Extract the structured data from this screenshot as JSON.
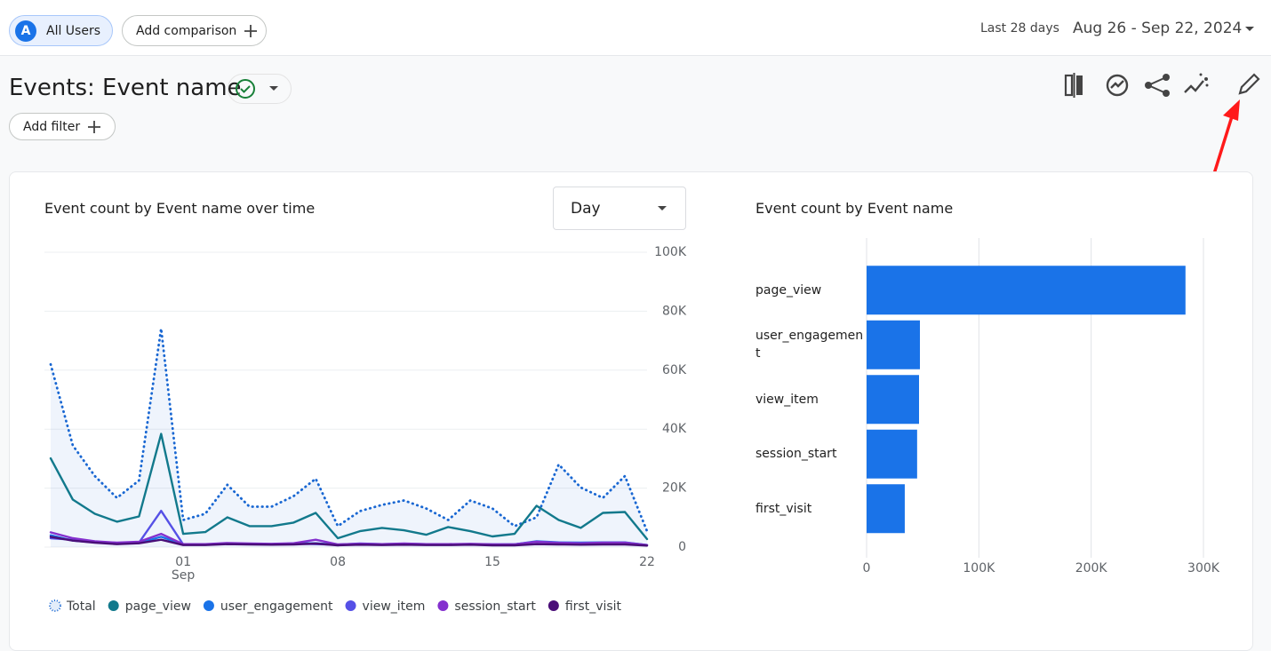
{
  "header": {
    "segment_badge": "A",
    "segment": "All Users",
    "add_comparison": "Add comparison",
    "date_range_label": "Last 28 days",
    "date_range": "Aug 26 - Sep 22, 2024",
    "title": "Events: Event name",
    "add_filter": "Add filter"
  },
  "chart_data": [
    {
      "type": "line",
      "title": "Event count by Event name over time",
      "interval": "Day",
      "categories": [
        null,
        null,
        null,
        null,
        null,
        null,
        "01",
        null,
        null,
        null,
        null,
        null,
        null,
        "08",
        null,
        null,
        null,
        null,
        null,
        null,
        "15",
        null,
        null,
        null,
        null,
        null,
        null,
        "22"
      ],
      "month_label": "Sep",
      "ylim": [
        0,
        100000
      ],
      "yticks": [
        0,
        {
          "value": 20000,
          "label": "20K"
        },
        {
          "value": 40000,
          "label": "40K"
        },
        {
          "value": 60000,
          "label": "60K"
        },
        {
          "value": 80000,
          "label": "80K"
        },
        {
          "value": 100000,
          "label": "100K"
        }
      ],
      "grid": true,
      "series": [
        {
          "name": "Total",
          "color": "#1967d2",
          "line_style": "dotted",
          "area": true,
          "values": [
            62000,
            34500,
            24100,
            16700,
            22600,
            74100,
            9200,
            11300,
            21100,
            13700,
            13700,
            17300,
            23200,
            7100,
            12200,
            14300,
            15800,
            13100,
            9200,
            15800,
            13100,
            7100,
            10100,
            28000,
            20200,
            16700,
            24100,
            5400
          ]
        },
        {
          "name": "page_view",
          "color": "#12798c",
          "values": [
            30100,
            16100,
            11300,
            8600,
            10400,
            38400,
            4500,
            5100,
            10100,
            7100,
            7100,
            8300,
            11600,
            3000,
            5400,
            6500,
            5700,
            4200,
            6800,
            5400,
            3600,
            4500,
            14000,
            9200,
            6500,
            11600,
            11900,
            2700
          ]
        },
        {
          "name": "user_engagement",
          "color": "#1a73e8",
          "values": [
            4000,
            2200,
            1600,
            1100,
            1400,
            3500,
            900,
            800,
            1300,
            1000,
            1000,
            1200,
            1300,
            800,
            900,
            1000,
            1000,
            900,
            900,
            1000,
            800,
            900,
            2000,
            1600,
            1500,
            1600,
            1600,
            700
          ]
        },
        {
          "name": "view_item",
          "color": "#5550e6",
          "values": [
            3000,
            2500,
            1800,
            1200,
            1500,
            12300,
            900,
            900,
            1200,
            1000,
            1000,
            1200,
            1000,
            800,
            1200,
            1000,
            1100,
            1000,
            1000,
            1000,
            900,
            900,
            1800,
            1500,
            1300,
            1400,
            1300,
            600
          ]
        },
        {
          "name": "session_start",
          "color": "#8430ce",
          "values": [
            5000,
            3000,
            2000,
            1500,
            1800,
            4500,
            1000,
            1000,
            1400,
            1200,
            1100,
            1300,
            2500,
            900,
            1100,
            1000,
            1200,
            1000,
            1000,
            1100,
            900,
            900,
            1800,
            1400,
            1300,
            1500,
            1500,
            700
          ]
        },
        {
          "name": "first_visit",
          "color": "#4a0e78",
          "values": [
            3500,
            2200,
            1500,
            1000,
            1300,
            2500,
            700,
            700,
            1000,
            900,
            800,
            900,
            1200,
            600,
            800,
            700,
            800,
            700,
            700,
            800,
            600,
            600,
            1000,
            900,
            800,
            900,
            900,
            500
          ]
        }
      ]
    },
    {
      "type": "hbar",
      "title": "Event count by Event name",
      "categories": [
        "page_view",
        "user_engagement",
        "view_item",
        "session_start",
        "first_visit"
      ],
      "values": [
        284000,
        47500,
        46700,
        45000,
        34000
      ],
      "color": "#1a73e8",
      "xlim": [
        0,
        300000
      ],
      "xticks": [
        0,
        {
          "value": 100000,
          "label": "100K"
        },
        {
          "value": 200000,
          "label": "200K"
        },
        {
          "value": 300000,
          "label": "300K"
        }
      ],
      "grid": true
    }
  ]
}
